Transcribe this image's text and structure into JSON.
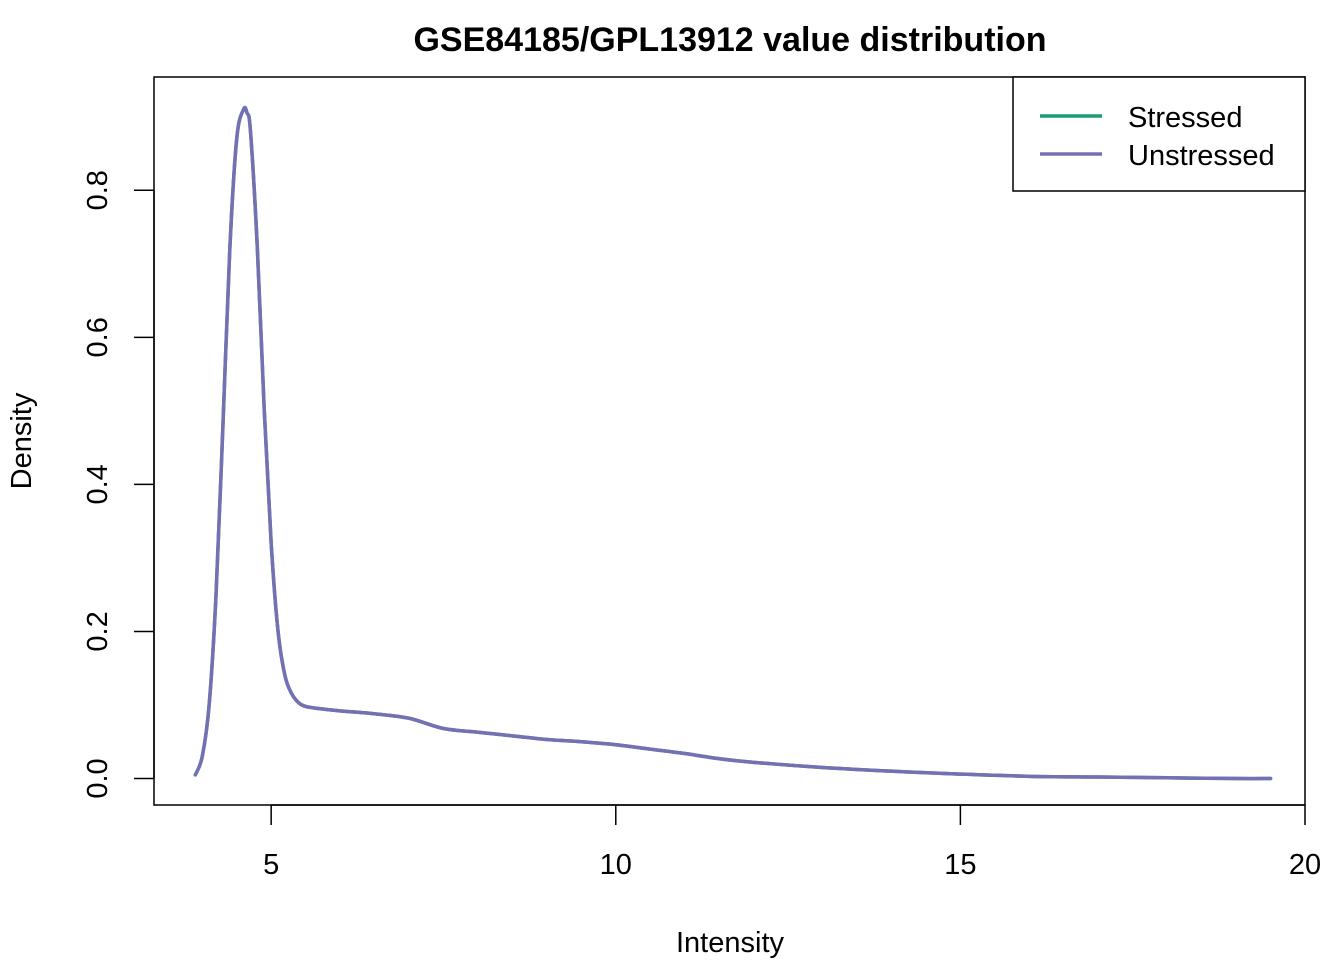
{
  "chart_data": {
    "type": "line",
    "title": "GSE84185/GPL13912 value distribution",
    "xlabel": "Intensity",
    "ylabel": "Density",
    "xlim": [
      3.3,
      20.0
    ],
    "ylim": [
      -0.036,
      0.954
    ],
    "x_ticks": [
      5,
      10,
      15,
      20
    ],
    "y_ticks": [
      0.0,
      0.2,
      0.4,
      0.6,
      0.8
    ],
    "x_tick_labels": [
      "5",
      "10",
      "15",
      "20"
    ],
    "y_tick_labels": [
      "0.0",
      "0.2",
      "0.4",
      "0.6",
      "0.8"
    ],
    "legend_position": "top-right",
    "grid": false,
    "series": [
      {
        "name": "Stressed",
        "color": "#1b9e77",
        "x": [
          3.9,
          4.0,
          4.1,
          4.2,
          4.3,
          4.4,
          4.5,
          4.6,
          4.65,
          4.7,
          4.8,
          4.9,
          5.0,
          5.1,
          5.2,
          5.3,
          5.4,
          5.5,
          5.7,
          6.0,
          6.5,
          7.0,
          7.5,
          8.0,
          8.5,
          9.0,
          9.5,
          10.0,
          10.5,
          11.0,
          11.5,
          12.0,
          13.0,
          14.0,
          15.0,
          16.0,
          17.0,
          18.0,
          19.0,
          19.5
        ],
        "y": [
          0.005,
          0.03,
          0.1,
          0.25,
          0.48,
          0.72,
          0.87,
          0.91,
          0.905,
          0.88,
          0.72,
          0.5,
          0.32,
          0.2,
          0.14,
          0.115,
          0.103,
          0.098,
          0.095,
          0.092,
          0.088,
          0.082,
          0.068,
          0.063,
          0.058,
          0.053,
          0.05,
          0.046,
          0.04,
          0.034,
          0.027,
          0.022,
          0.015,
          0.01,
          0.006,
          0.003,
          0.002,
          0.001,
          0.0,
          0.0
        ]
      },
      {
        "name": "Unstressed",
        "color": "#7570b3",
        "x": [
          3.9,
          4.0,
          4.1,
          4.2,
          4.3,
          4.4,
          4.5,
          4.6,
          4.65,
          4.7,
          4.8,
          4.9,
          5.0,
          5.1,
          5.2,
          5.3,
          5.4,
          5.5,
          5.7,
          6.0,
          6.5,
          7.0,
          7.5,
          8.0,
          8.5,
          9.0,
          9.5,
          10.0,
          10.5,
          11.0,
          11.5,
          12.0,
          13.0,
          14.0,
          15.0,
          16.0,
          17.0,
          18.0,
          19.0,
          19.5
        ],
        "y": [
          0.005,
          0.03,
          0.1,
          0.25,
          0.48,
          0.72,
          0.87,
          0.91,
          0.905,
          0.88,
          0.72,
          0.5,
          0.32,
          0.2,
          0.14,
          0.115,
          0.103,
          0.098,
          0.095,
          0.092,
          0.088,
          0.082,
          0.068,
          0.063,
          0.058,
          0.053,
          0.05,
          0.046,
          0.04,
          0.034,
          0.027,
          0.022,
          0.015,
          0.01,
          0.006,
          0.003,
          0.002,
          0.001,
          0.0,
          0.0
        ]
      }
    ]
  }
}
